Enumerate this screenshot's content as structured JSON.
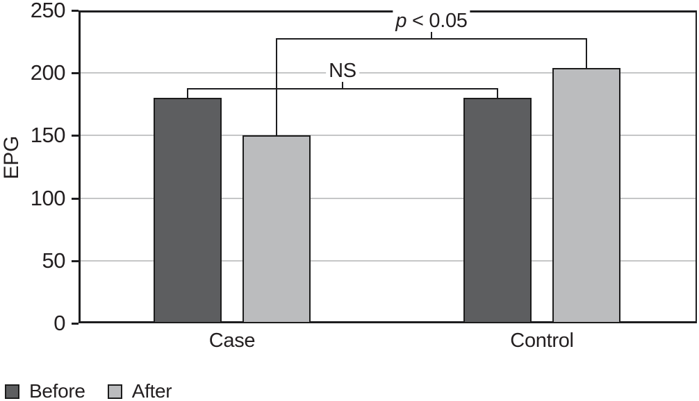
{
  "chart_data": {
    "type": "bar",
    "title": "",
    "xlabel": "",
    "ylabel": "EPG",
    "ylim": [
      0,
      250
    ],
    "yticks": [
      0,
      50,
      100,
      150,
      200,
      250
    ],
    "grid": true,
    "legend_position": "bottom-left",
    "categories": [
      "Case",
      "Control"
    ],
    "series": [
      {
        "name": "Before",
        "color": "#5d5e60",
        "values": [
          180,
          180
        ]
      },
      {
        "name": "After",
        "color": "#bbbcbe",
        "values": [
          150,
          204
        ]
      }
    ],
    "annotations": [
      {
        "id": "ns-bracket",
        "italic_var": "",
        "label": "NS",
        "level_epg": 188,
        "connects": [
          {
            "category": "Case",
            "series": "Before"
          },
          {
            "category": "Control",
            "series": "Before"
          }
        ]
      },
      {
        "id": "p-bracket",
        "italic_var": "p",
        "label": " < 0.05",
        "level_epg": 228,
        "connects": [
          {
            "category": "Case",
            "series": "After"
          },
          {
            "category": "Control",
            "series": "After"
          }
        ]
      }
    ]
  }
}
